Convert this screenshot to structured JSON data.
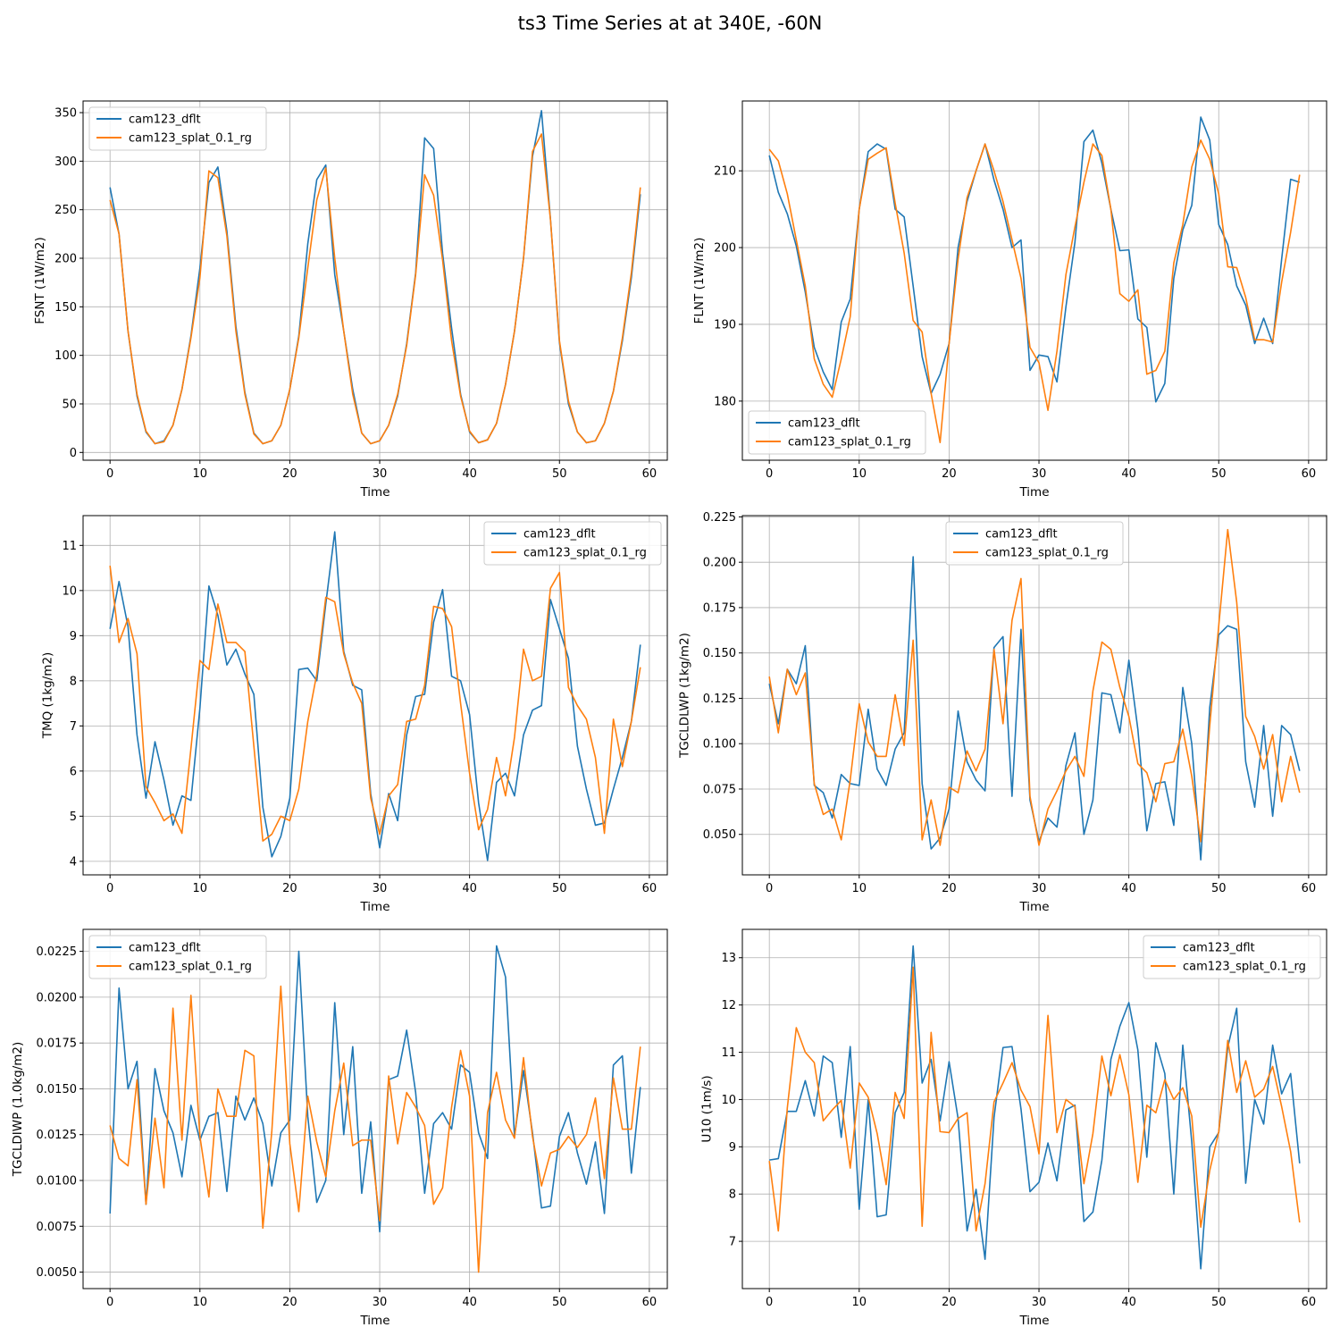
{
  "figure": {
    "suptitle": "ts3 Time Series at at 340E, -60N"
  },
  "colors": {
    "series1": "#1f77b4",
    "series2": "#ff7f0e",
    "grid": "#b0b0b0",
    "axis": "#000000"
  },
  "chart_data": [
    {
      "type": "line",
      "id": "fsnt",
      "xlabel": "Time",
      "ylabel": "FSNT (1W/m2)",
      "xlim": [
        -3,
        62
      ],
      "ylim": [
        -8,
        362
      ],
      "xticks": [
        0,
        10,
        20,
        30,
        40,
        50,
        60
      ],
      "yticks": [
        0,
        50,
        100,
        150,
        200,
        250,
        300,
        350
      ],
      "ytick_labels": [
        "0",
        "50",
        "100",
        "150",
        "200",
        "250",
        "300",
        "350"
      ],
      "grid": true,
      "legend_loc": "upper-left",
      "series": [
        {
          "name": "cam123_dflt",
          "values": [
            273,
            225,
            125,
            58,
            21,
            9,
            12,
            28,
            65,
            120,
            190,
            278,
            294,
            228,
            130,
            62,
            20,
            9,
            12,
            28,
            65,
            120,
            215,
            281,
            296,
            183,
            125,
            65,
            20,
            9,
            12,
            28,
            58,
            112,
            185,
            324,
            313,
            205,
            128,
            60,
            21,
            10,
            13,
            30,
            70,
            125,
            200,
            305,
            352,
            240,
            113,
            50,
            21,
            10,
            12,
            30,
            63,
            115,
            180,
            266
          ]
        },
        {
          "name": "cam123_splat_0.1_rg",
          "values": [
            260,
            225,
            125,
            60,
            22,
            9,
            11,
            28,
            65,
            118,
            180,
            290,
            283,
            223,
            125,
            60,
            19,
            9,
            12,
            28,
            65,
            118,
            190,
            260,
            293,
            200,
            125,
            60,
            20,
            9,
            12,
            28,
            60,
            110,
            183,
            286,
            265,
            198,
            115,
            58,
            22,
            10,
            13,
            30,
            70,
            125,
            200,
            310,
            328,
            240,
            115,
            53,
            21,
            10,
            12,
            30,
            63,
            118,
            185,
            273
          ]
        }
      ]
    },
    {
      "type": "line",
      "id": "flnt",
      "xlabel": "Time",
      "ylabel": "FLNT (1W/m2)",
      "xlim": [
        -3,
        62
      ],
      "ylim": [
        172.3,
        219.1
      ],
      "xticks": [
        0,
        10,
        20,
        30,
        40,
        50,
        60
      ],
      "yticks": [
        180,
        190,
        200,
        210
      ],
      "ytick_labels": [
        "180",
        "190",
        "200",
        "210"
      ],
      "grid": true,
      "legend_loc": "lower-left",
      "series": [
        {
          "name": "cam123_dflt",
          "values": [
            212,
            207.2,
            204.4,
            200.2,
            194.2,
            187.0,
            183.8,
            181.5,
            190.3,
            193.3,
            205.0,
            212.5,
            213.5,
            212.8,
            205.0,
            204.0,
            195.0,
            185.8,
            181.0,
            183.5,
            187.5,
            200.0,
            206.0,
            210.0,
            213.5,
            208.8,
            205.0,
            200.0,
            201.0,
            184.0,
            186.0,
            185.8,
            182.5,
            192.3,
            200.7,
            213.8,
            215.3,
            211.0,
            205.0,
            199.6,
            199.7,
            190.7,
            189.6,
            179.9,
            182.3,
            196.0,
            202.3,
            205.5,
            217.0,
            214.0,
            203.0,
            200.4,
            195.0,
            192.5,
            187.5,
            190.8,
            187.5,
            198.5,
            208.9,
            208.5
          ]
        },
        {
          "name": "cam123_splat_0.1_rg",
          "values": [
            212.8,
            211.3,
            207.0,
            201.0,
            195.0,
            185.5,
            182.2,
            180.5,
            185.5,
            191.0,
            205.0,
            211.5,
            212.3,
            213.0,
            205.8,
            199.3,
            190.5,
            189.0,
            181.0,
            174.6,
            187.5,
            198.5,
            206.5,
            210.0,
            213.5,
            210.0,
            206.0,
            201.0,
            196.0,
            187.0,
            185.0,
            178.8,
            186.5,
            196.5,
            202.7,
            208.5,
            213.5,
            212.0,
            205.0,
            194.0,
            193.0,
            194.5,
            183.5,
            184.0,
            186.5,
            198.0,
            203.0,
            210.5,
            214.0,
            211.5,
            207.0,
            197.5,
            197.4,
            193.5,
            188.0,
            188.0,
            187.7,
            195.5,
            202.0,
            209.5
          ]
        }
      ]
    },
    {
      "type": "line",
      "id": "tmq",
      "xlabel": "Time",
      "ylabel": "TMQ (1kg/m2)",
      "xlim": [
        -3,
        62
      ],
      "ylim": [
        3.7,
        11.66
      ],
      "xticks": [
        0,
        10,
        20,
        30,
        40,
        50,
        60
      ],
      "yticks": [
        4,
        5,
        6,
        7,
        8,
        9,
        10,
        11
      ],
      "ytick_labels": [
        "4",
        "5",
        "6",
        "7",
        "8",
        "9",
        "10",
        "11"
      ],
      "grid": true,
      "legend_loc": "upper-right",
      "series": [
        {
          "name": "cam123_dflt",
          "values": [
            9.15,
            10.2,
            9.2,
            6.8,
            5.4,
            6.65,
            5.8,
            4.8,
            5.45,
            5.35,
            7.4,
            10.1,
            9.45,
            8.35,
            8.7,
            8.15,
            7.7,
            5.2,
            4.1,
            4.55,
            5.4,
            8.25,
            8.28,
            8.0,
            9.7,
            11.3,
            8.65,
            7.9,
            7.8,
            5.5,
            4.3,
            5.5,
            4.9,
            6.8,
            7.65,
            7.7,
            9.3,
            10.02,
            8.1,
            8.0,
            7.25,
            5.3,
            4.02,
            5.75,
            5.95,
            5.45,
            6.8,
            7.35,
            7.45,
            9.8,
            9.15,
            8.5,
            6.55,
            5.6,
            4.8,
            4.85,
            5.6,
            6.3,
            7.1,
            8.8
          ]
        },
        {
          "name": "cam123_splat_0.1_rg",
          "values": [
            10.55,
            8.85,
            9.38,
            8.6,
            5.65,
            5.3,
            4.9,
            5.05,
            4.62,
            6.5,
            8.45,
            8.25,
            9.7,
            8.85,
            8.85,
            8.65,
            6.55,
            4.45,
            4.6,
            5.0,
            4.9,
            5.6,
            7.1,
            8.15,
            9.85,
            9.75,
            8.6,
            7.95,
            7.5,
            5.4,
            4.6,
            5.45,
            5.7,
            7.1,
            7.15,
            7.9,
            9.65,
            9.6,
            9.2,
            7.5,
            5.95,
            4.7,
            5.15,
            6.3,
            5.45,
            6.75,
            8.7,
            8.0,
            8.1,
            10.05,
            10.4,
            7.85,
            7.45,
            7.15,
            6.3,
            4.62,
            7.15,
            6.1,
            7.1,
            8.3
          ]
        }
      ]
    },
    {
      "type": "line",
      "id": "tgcldlwp",
      "xlabel": "Time",
      "ylabel": "TGCLDLWP (1kg/m2)",
      "xlim": [
        -3,
        62
      ],
      "ylim": [
        0.0277,
        0.2257
      ],
      "xticks": [
        0,
        10,
        20,
        30,
        40,
        50,
        60
      ],
      "yticks": [
        0.05,
        0.075,
        0.1,
        0.125,
        0.15,
        0.175,
        0.2,
        0.225
      ],
      "ytick_labels": [
        "0.050",
        "0.075",
        "0.100",
        "0.125",
        "0.150",
        "0.175",
        "0.200",
        "0.225"
      ],
      "grid": true,
      "legend_loc": "upper-center",
      "series": [
        {
          "name": "cam123_dflt",
          "values": [
            0.133,
            0.111,
            0.141,
            0.133,
            0.154,
            0.077,
            0.073,
            0.059,
            0.083,
            0.078,
            0.077,
            0.119,
            0.086,
            0.077,
            0.097,
            0.106,
            0.203,
            0.078,
            0.042,
            0.048,
            0.064,
            0.118,
            0.09,
            0.08,
            0.074,
            0.153,
            0.159,
            0.071,
            0.163,
            0.069,
            0.046,
            0.059,
            0.054,
            0.088,
            0.106,
            0.05,
            0.069,
            0.128,
            0.127,
            0.106,
            0.146,
            0.108,
            0.052,
            0.078,
            0.079,
            0.055,
            0.131,
            0.1,
            0.036,
            0.12,
            0.16,
            0.165,
            0.163,
            0.09,
            0.065,
            0.11,
            0.06,
            0.11,
            0.105,
            0.085
          ]
        },
        {
          "name": "cam123_splat_0.1_rg",
          "values": [
            0.137,
            0.106,
            0.141,
            0.127,
            0.139,
            0.078,
            0.061,
            0.064,
            0.047,
            0.08,
            0.122,
            0.101,
            0.093,
            0.093,
            0.127,
            0.099,
            0.157,
            0.047,
            0.069,
            0.044,
            0.076,
            0.073,
            0.096,
            0.085,
            0.097,
            0.152,
            0.111,
            0.168,
            0.191,
            0.071,
            0.044,
            0.064,
            0.074,
            0.085,
            0.093,
            0.082,
            0.129,
            0.156,
            0.152,
            0.131,
            0.115,
            0.089,
            0.084,
            0.068,
            0.089,
            0.09,
            0.108,
            0.082,
            0.046,
            0.11,
            0.165,
            0.218,
            0.178,
            0.115,
            0.104,
            0.086,
            0.105,
            0.068,
            0.093,
            0.073
          ]
        }
      ]
    },
    {
      "type": "line",
      "id": "tgcldiwp",
      "xlabel": "Time",
      "ylabel": "TGCLDIWP (1.0kg/m2)",
      "xlim": [
        -3,
        62
      ],
      "ylim": [
        0.0041,
        0.0237
      ],
      "xticks": [
        0,
        10,
        20,
        30,
        40,
        50,
        60
      ],
      "yticks": [
        0.005,
        0.0075,
        0.01,
        0.0125,
        0.015,
        0.0175,
        0.02,
        0.0225
      ],
      "ytick_labels": [
        "0.0050",
        "0.0075",
        "0.0100",
        "0.0125",
        "0.0150",
        "0.0175",
        "0.0200",
        "0.0225"
      ],
      "grid": true,
      "legend_loc": "upper-left",
      "series": [
        {
          "name": "cam123_dflt",
          "values": [
            0.0082,
            0.0205,
            0.015,
            0.0165,
            0.0087,
            0.0161,
            0.0138,
            0.0126,
            0.0102,
            0.0141,
            0.0122,
            0.0135,
            0.0137,
            0.0094,
            0.0146,
            0.0133,
            0.0145,
            0.0131,
            0.0097,
            0.0126,
            0.0133,
            0.0225,
            0.0135,
            0.0088,
            0.01,
            0.0197,
            0.0125,
            0.0173,
            0.0093,
            0.0132,
            0.0072,
            0.0155,
            0.0157,
            0.0182,
            0.0148,
            0.0093,
            0.0131,
            0.0137,
            0.0128,
            0.0163,
            0.0159,
            0.0126,
            0.0112,
            0.0228,
            0.0211,
            0.0124,
            0.016,
            0.0126,
            0.0085,
            0.0086,
            0.0124,
            0.0137,
            0.0115,
            0.0098,
            0.0121,
            0.0082,
            0.0163,
            0.0168,
            0.0104,
            0.0151
          ]
        },
        {
          "name": "cam123_splat_0.1_rg",
          "values": [
            0.013,
            0.0112,
            0.0108,
            0.0155,
            0.0087,
            0.0134,
            0.0096,
            0.0194,
            0.0122,
            0.0201,
            0.0124,
            0.0091,
            0.015,
            0.0135,
            0.0135,
            0.0171,
            0.0168,
            0.0074,
            0.0127,
            0.0206,
            0.012,
            0.0083,
            0.0146,
            0.0121,
            0.0102,
            0.0138,
            0.0164,
            0.0119,
            0.0122,
            0.0122,
            0.0078,
            0.0157,
            0.012,
            0.0148,
            0.014,
            0.013,
            0.0087,
            0.0096,
            0.014,
            0.0171,
            0.0146,
            0.005,
            0.0137,
            0.0159,
            0.0133,
            0.0123,
            0.0167,
            0.0124,
            0.0097,
            0.0115,
            0.0117,
            0.0124,
            0.0118,
            0.0125,
            0.0145,
            0.0101,
            0.0156,
            0.0128,
            0.0128,
            0.0173
          ]
        }
      ]
    },
    {
      "type": "line",
      "id": "u10",
      "xlabel": "Time",
      "ylabel": "U10 (1m/s)",
      "xlim": [
        -3,
        62
      ],
      "ylim": [
        6.0,
        13.6
      ],
      "xticks": [
        0,
        10,
        20,
        30,
        40,
        50,
        60
      ],
      "yticks": [
        7,
        8,
        9,
        10,
        11,
        12,
        13
      ],
      "ytick_labels": [
        "7",
        "8",
        "9",
        "10",
        "11",
        "12",
        "13"
      ],
      "grid": true,
      "legend_loc": "upper-right",
      "series": [
        {
          "name": "cam123_dflt",
          "values": [
            8.72,
            8.75,
            9.75,
            9.75,
            10.4,
            9.65,
            10.92,
            10.78,
            9.2,
            11.12,
            7.68,
            10.0,
            7.52,
            7.56,
            9.72,
            10.15,
            13.25,
            10.35,
            10.85,
            9.55,
            10.8,
            9.6,
            7.22,
            8.1,
            6.62,
            9.62,
            11.1,
            11.12,
            9.8,
            8.05,
            8.25,
            9.08,
            8.28,
            9.78,
            9.88,
            7.42,
            7.62,
            8.72,
            10.85,
            11.55,
            12.05,
            11.05,
            8.78,
            11.2,
            10.55,
            8.0,
            11.15,
            9.1,
            6.42,
            9.0,
            9.3,
            11.1,
            11.93,
            8.23,
            10.0,
            9.48,
            11.15,
            10.12,
            10.55,
            8.65
          ]
        },
        {
          "name": "cam123_splat_0.1_rg",
          "values": [
            8.7,
            7.22,
            9.82,
            11.52,
            11.0,
            10.78,
            9.55,
            9.78,
            9.98,
            8.55,
            10.35,
            10.05,
            9.28,
            8.2,
            10.15,
            9.6,
            12.8,
            7.32,
            11.42,
            9.32,
            9.3,
            9.6,
            9.72,
            7.22,
            8.22,
            9.95,
            10.35,
            10.78,
            10.2,
            9.85,
            8.85,
            11.78,
            9.3,
            10.0,
            9.85,
            8.22,
            9.28,
            10.92,
            10.08,
            10.95,
            10.1,
            8.25,
            9.88,
            9.72,
            10.42,
            10.0,
            10.25,
            9.65,
            7.3,
            8.5,
            9.32,
            11.25,
            10.15,
            10.82,
            10.05,
            10.22,
            10.7,
            9.85,
            8.9,
            7.4
          ]
        }
      ]
    }
  ]
}
